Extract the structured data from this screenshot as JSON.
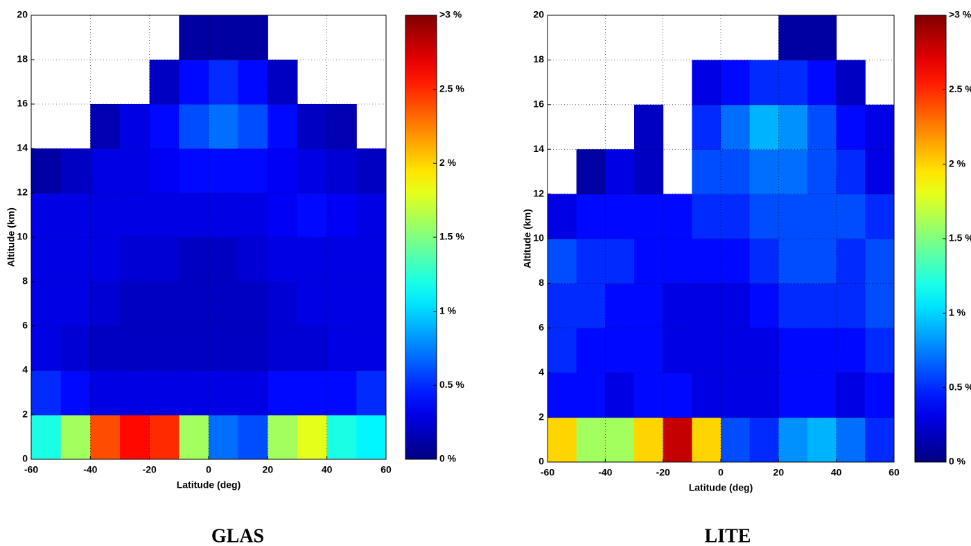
{
  "chart_data": [
    {
      "type": "heatmap",
      "title": "GLAS",
      "xlabel": "Latitude (deg)",
      "ylabel": "Altitude (km)",
      "colormap": "jet",
      "grid": true,
      "xlim": [
        -60,
        60
      ],
      "ylim": [
        0,
        20
      ],
      "xticks": [
        -60,
        -40,
        -20,
        0,
        20,
        40,
        60
      ],
      "yticks": [
        0,
        2,
        4,
        6,
        8,
        10,
        12,
        14,
        16,
        18,
        20
      ],
      "xbins": [
        -60,
        -50,
        -40,
        -30,
        -20,
        -10,
        0,
        10,
        20,
        30,
        40,
        50,
        60
      ],
      "ybins": [
        0,
        2,
        4,
        6,
        8,
        10,
        12,
        14,
        16,
        18,
        20
      ],
      "values": [
        [
          1.2,
          1.6,
          2.4,
          2.6,
          2.5,
          1.6,
          0.7,
          0.6,
          1.6,
          1.8,
          1.2,
          1.1
        ],
        [
          0.5,
          0.4,
          0.3,
          0.3,
          0.3,
          0.3,
          0.3,
          0.3,
          0.4,
          0.4,
          0.4,
          0.5
        ],
        [
          0.3,
          0.25,
          0.2,
          0.2,
          0.2,
          0.2,
          0.2,
          0.2,
          0.25,
          0.25,
          0.3,
          0.3
        ],
        [
          0.3,
          0.3,
          0.25,
          0.2,
          0.2,
          0.2,
          0.2,
          0.2,
          0.25,
          0.3,
          0.3,
          0.3
        ],
        [
          0.3,
          0.3,
          0.3,
          0.25,
          0.25,
          0.2,
          0.2,
          0.25,
          0.3,
          0.3,
          0.3,
          0.3
        ],
        [
          0.3,
          0.3,
          0.3,
          0.3,
          0.3,
          0.3,
          0.3,
          0.3,
          0.35,
          0.4,
          0.35,
          0.3
        ],
        [
          0.1,
          0.2,
          0.3,
          0.3,
          0.35,
          0.4,
          0.4,
          0.4,
          0.35,
          0.3,
          0.25,
          0.2
        ],
        [
          null,
          null,
          0.15,
          0.3,
          0.4,
          0.6,
          0.7,
          0.6,
          0.4,
          0.2,
          0.15,
          null
        ],
        [
          null,
          null,
          null,
          null,
          0.2,
          0.4,
          0.5,
          0.4,
          0.2,
          null,
          null,
          null
        ],
        [
          null,
          null,
          null,
          null,
          null,
          0.1,
          0.1,
          0.1,
          null,
          null,
          null,
          null
        ]
      ],
      "colorbar": {
        "clim": [
          0,
          3
        ],
        "ticks": [
          {
            "value": 0,
            "label": "0 %"
          },
          {
            "value": 0.5,
            "label": "0.5 %"
          },
          {
            "value": 1,
            "label": "1 %"
          },
          {
            "value": 1.5,
            "label": "1.5 %"
          },
          {
            "value": 2,
            "label": "2 %"
          },
          {
            "value": 2.5,
            "label": "2.5 %"
          },
          {
            "value": 3,
            "label": ">3 %"
          }
        ]
      }
    },
    {
      "type": "heatmap",
      "title": "LITE",
      "xlabel": "Latitude (deg)",
      "ylabel": "Altitude (km)",
      "colormap": "jet",
      "grid": true,
      "xlim": [
        -60,
        60
      ],
      "ylim": [
        0,
        20
      ],
      "xticks": [
        -60,
        -40,
        -20,
        0,
        20,
        40,
        60
      ],
      "yticks": [
        0,
        2,
        4,
        6,
        8,
        10,
        12,
        14,
        16,
        18,
        20
      ],
      "xbins": [
        -60,
        -50,
        -40,
        -30,
        -20,
        -10,
        0,
        10,
        20,
        30,
        40,
        50,
        60
      ],
      "ybins": [
        0,
        2,
        4,
        6,
        8,
        10,
        12,
        14,
        16,
        18,
        20
      ],
      "values": [
        [
          2.0,
          1.6,
          1.6,
          2.0,
          2.8,
          2.0,
          0.6,
          0.5,
          0.8,
          0.9,
          0.7,
          0.5
        ],
        [
          0.4,
          0.4,
          0.3,
          0.4,
          0.4,
          0.3,
          0.3,
          0.3,
          0.4,
          0.4,
          0.3,
          0.4
        ],
        [
          0.5,
          0.4,
          0.4,
          0.4,
          0.3,
          0.3,
          0.3,
          0.3,
          0.4,
          0.4,
          0.4,
          0.5
        ],
        [
          0.5,
          0.5,
          0.4,
          0.4,
          0.3,
          0.3,
          0.3,
          0.4,
          0.5,
          0.5,
          0.5,
          0.6
        ],
        [
          0.6,
          0.5,
          0.5,
          0.4,
          0.4,
          0.4,
          0.4,
          0.5,
          0.6,
          0.6,
          0.5,
          0.6
        ],
        [
          0.3,
          0.4,
          0.4,
          0.4,
          0.4,
          0.5,
          0.5,
          0.6,
          0.6,
          0.6,
          0.6,
          0.5
        ],
        [
          null,
          0.1,
          0.3,
          0.2,
          null,
          0.6,
          0.6,
          0.7,
          0.7,
          0.6,
          0.5,
          0.3
        ],
        [
          null,
          null,
          null,
          0.2,
          null,
          0.5,
          0.7,
          0.9,
          0.8,
          0.6,
          0.4,
          0.3
        ],
        [
          null,
          null,
          null,
          null,
          null,
          0.3,
          0.4,
          0.5,
          0.5,
          0.4,
          0.2,
          null
        ],
        [
          null,
          null,
          null,
          null,
          null,
          null,
          null,
          null,
          0.1,
          0.1,
          null,
          null
        ]
      ],
      "colorbar": {
        "clim": [
          0,
          3
        ],
        "ticks": [
          {
            "value": 0,
            "label": "0 %"
          },
          {
            "value": 0.5,
            "label": "0.5 %"
          },
          {
            "value": 1,
            "label": "1 %"
          },
          {
            "value": 1.5,
            "label": "1.5 %"
          },
          {
            "value": 2,
            "label": "2 %"
          },
          {
            "value": 2.5,
            "label": "2.5 %"
          },
          {
            "value": 3,
            "label": ">3 %"
          }
        ]
      }
    }
  ]
}
